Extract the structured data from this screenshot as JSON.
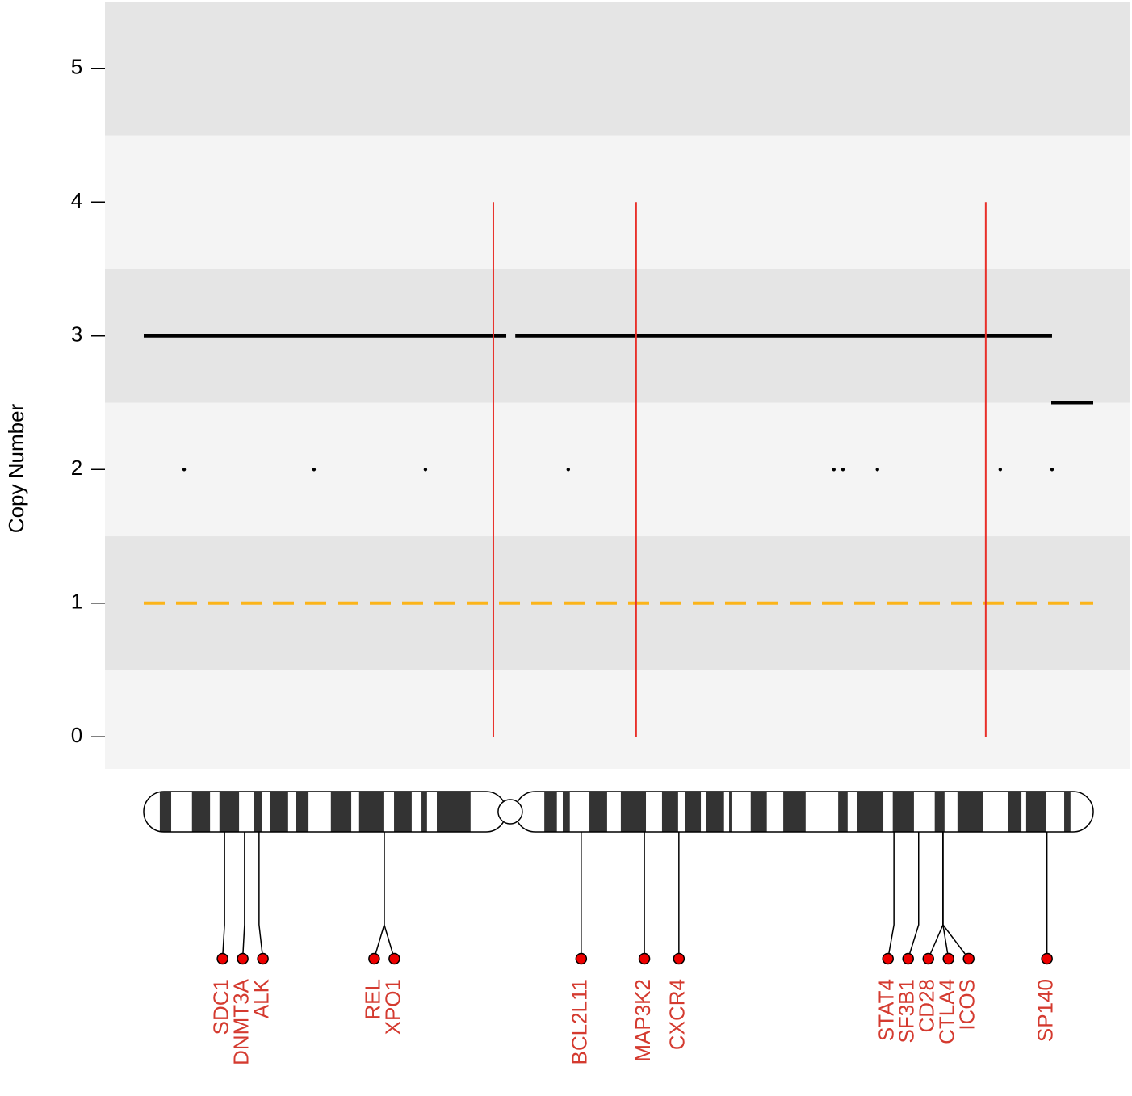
{
  "chart_data": {
    "type": "copy-number",
    "y_label": "Copy Number",
    "ylim": [
      -0.24,
      5.5
    ],
    "yticks": [
      0,
      1,
      2,
      3,
      4,
      5
    ],
    "xlim": [
      0,
      242
    ],
    "segments": {
      "color": "#000000",
      "x0": [
        0,
        94.7,
        231.3
      ],
      "x1": [
        92.4,
        231.5,
        242
      ],
      "values": [
        3,
        3,
        2.5
      ]
    },
    "baseline": {
      "color": "#fbb41a",
      "x0": [
        0
      ],
      "x1": [
        242
      ],
      "values": [
        1
      ]
    },
    "points": {
      "color": "#000000",
      "x": [
        10.3,
        43.4,
        71.8,
        108.2,
        175.9,
        178.2,
        187.0,
        218.3,
        231.5
      ],
      "values": [
        2,
        2,
        2,
        2,
        2,
        2,
        2,
        2,
        2
      ]
    },
    "markers": {
      "color": "#e8302a",
      "x": [
        89.1,
        125.5,
        214.6
      ],
      "values": [
        4,
        4,
        4
      ]
    },
    "ideogram": {
      "centromere": 93.2,
      "dark_start": [
        4.1,
        12.3,
        19.3,
        28.0,
        32.1,
        38.7,
        47.7,
        54.9,
        63.8,
        70.8,
        74.7,
        102.1,
        106.8,
        113.6,
        121.6,
        132.1,
        137.9,
        143.4,
        149.2,
        154.7,
        163.0,
        177.0,
        181.9,
        190.9,
        201.6,
        207.4,
        220.2,
        224.9,
        234.6
      ],
      "dark_end": [
        7.0,
        16.9,
        24.3,
        30.2,
        36.8,
        42.0,
        52.9,
        61.1,
        68.3,
        72.2,
        83.3,
        105.3,
        108.6,
        118.1,
        128.0,
        136.2,
        142.0,
        147.9,
        149.8,
        158.8,
        168.7,
        179.4,
        188.5,
        196.3,
        204.1,
        214.0,
        223.7,
        230.0,
        236.2
      ]
    },
    "genes": {
      "color": "#d43a2f",
      "names": [
        "SDC1",
        "DNMT3A",
        "ALK",
        "REL",
        "XPO1",
        "BCL2L11",
        "MAP3K2",
        "CXCR4",
        "STAT4",
        "SF3B1",
        "CD28",
        "CTLA4",
        "ICOS",
        "SP140"
      ],
      "x": [
        20.6,
        25.7,
        29.4,
        61.3,
        61.3,
        111.5,
        127.6,
        136.4,
        191.2,
        197.5,
        203.7,
        203.7,
        203.7,
        230.2
      ]
    }
  }
}
